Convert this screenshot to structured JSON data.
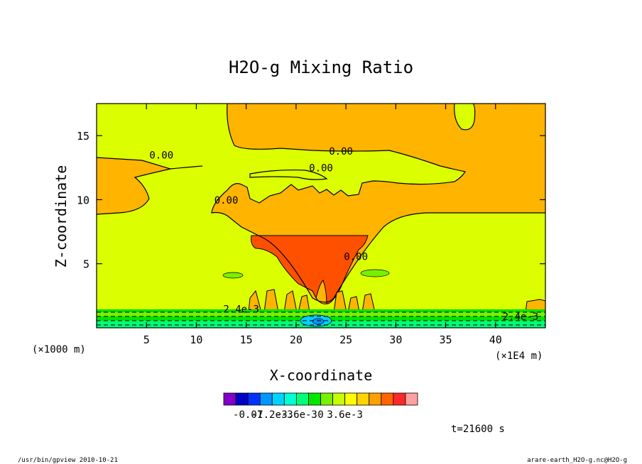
{
  "chart_data": {
    "type": "contour",
    "title": "H2O-g Mixing Ratio",
    "xlabel": "X-coordinate",
    "ylabel": "Z-coordinate",
    "x_unit_left": "(×1000 m)",
    "x_unit_right": "(×1E4 m)",
    "xlim": [
      0,
      45
    ],
    "ylim": [
      0,
      17.5
    ],
    "x_ticks": [
      5,
      10,
      15,
      20,
      25,
      30,
      35,
      40
    ],
    "y_ticks": [
      5,
      10,
      15
    ],
    "contour_labels": [
      {
        "text": "0.00",
        "x": 6.5,
        "y": 13.2
      },
      {
        "text": "0.00",
        "x": 24.5,
        "y": 13.5
      },
      {
        "text": "0.00",
        "x": 22.5,
        "y": 12.2
      },
      {
        "text": "0.00",
        "x": 13,
        "y": 9.7
      },
      {
        "text": "0.00",
        "x": 26,
        "y": 5.3
      },
      {
        "text": "2.4e-3",
        "x": 14.5,
        "y": 1.2
      },
      {
        "text": "2.4e-3",
        "x": 42.5,
        "y": 0.6
      }
    ],
    "regions": {
      "background": "#dcff00",
      "upper_band_color": "#ffb400",
      "plume_color": "#ff5000",
      "low_level_color": "#00d264"
    },
    "colorbar": {
      "colors": [
        "#8200c8",
        "#0000c8",
        "#0032ff",
        "#0096ff",
        "#00d2ff",
        "#00ffd2",
        "#00ff78",
        "#00e600",
        "#78f000",
        "#c8ff00",
        "#ffff00",
        "#ffd200",
        "#ffa000",
        "#ff6400",
        "#ff2828",
        "#ffa0a0"
      ],
      "tick_labels": [
        "-0.01",
        "-7.2e-3",
        "-3.6e-3",
        "0",
        "3.6e-3"
      ]
    },
    "time_label": "t=21600 s",
    "footer_left": "/usr/bin/gpview  2010-10-21",
    "footer_right": "arare-earth_H2O-g.nc@H2O-g"
  }
}
